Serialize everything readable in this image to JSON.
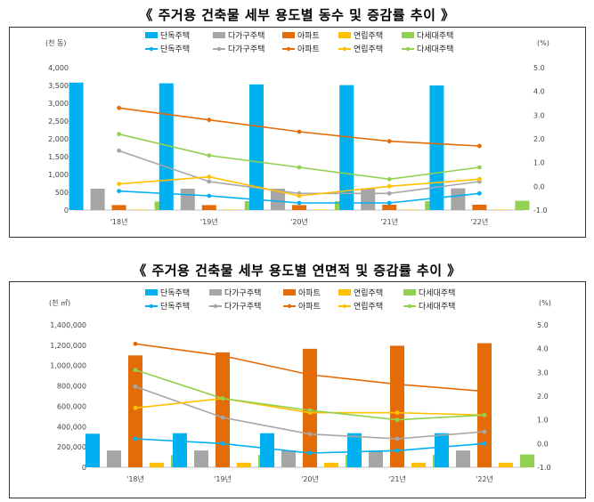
{
  "titles": [
    "《 주거용 건축물 세부 용도별 동수 및 증감률 추이 》",
    "《 주거용 건축물 세부 용도별 연면적 및 증감률 추이 》"
  ],
  "colors": {
    "단독주택": "#00b0f0",
    "다가구주택": "#a6a6a6",
    "아파트": "#e36c09",
    "연립주택": "#ffc000",
    "다세대주택": "#92d050"
  },
  "chart_data": [
    {
      "type": "bar",
      "categories": [
        "'18년",
        "'19년",
        "'20년",
        "'21년",
        "'22년"
      ],
      "y_unit": "(천 동)",
      "y2_unit": "(%)",
      "ylim": [
        0,
        4000
      ],
      "yticks": [
        "0",
        "500",
        "1,000",
        "1,500",
        "2,000",
        "2,500",
        "3,000",
        "3,500",
        "4,000"
      ],
      "y2lim": [
        -1.0,
        5.0
      ],
      "y2ticks": [
        "-1.0",
        "0.0",
        "1.0",
        "2.0",
        "3.0",
        "4.0",
        "5.0"
      ],
      "legend_bars": [
        "단독주택",
        "다가구주택",
        "아파트",
        "연립주택",
        "다세대주택"
      ],
      "legend_lines": [
        "단독주택",
        "다가구주택",
        "아파트",
        "연립주택",
        "다세대주택"
      ],
      "series": [
        {
          "name": "단독주택",
          "values": [
            3580,
            3560,
            3530,
            3510,
            3500
          ]
        },
        {
          "name": "다가구주택",
          "values": [
            600,
            600,
            600,
            610,
            610
          ]
        },
        {
          "name": "아파트",
          "values": [
            140,
            140,
            140,
            150,
            150
          ]
        },
        {
          "name": "연립주택",
          "values": [
            15,
            15,
            15,
            15,
            15
          ]
        },
        {
          "name": "다세대주택",
          "values": [
            240,
            250,
            250,
            250,
            260
          ]
        }
      ],
      "line_series": [
        {
          "name": "단독주택",
          "values": [
            -0.2,
            -0.4,
            -0.7,
            -0.7,
            -0.3
          ]
        },
        {
          "name": "다가구주택",
          "values": [
            1.5,
            0.2,
            -0.3,
            -0.3,
            0.2
          ]
        },
        {
          "name": "아파트",
          "values": [
            3.3,
            2.8,
            2.3,
            1.9,
            1.7
          ]
        },
        {
          "name": "연립주택",
          "values": [
            0.1,
            0.4,
            -0.4,
            0.0,
            0.3
          ]
        },
        {
          "name": "다세대주택",
          "values": [
            2.2,
            1.3,
            0.8,
            0.3,
            0.8
          ]
        }
      ]
    },
    {
      "type": "bar",
      "categories": [
        "'18년",
        "'19년",
        "'20년",
        "'21년",
        "'22년"
      ],
      "y_unit": "(천 ㎡)",
      "y2_unit": "(%)",
      "ylim": [
        0,
        1400000
      ],
      "yticks": [
        "0",
        "200,000",
        "400,000",
        "600,000",
        "800,000",
        "1,000,000",
        "1,200,000",
        "1,400,000"
      ],
      "y2lim": [
        -1.0,
        5.0
      ],
      "y2ticks": [
        "-1.0",
        "0.0",
        "1.0",
        "2.0",
        "3.0",
        "4.0",
        "5.0"
      ],
      "legend_bars": [
        "단독주택",
        "다가구주택",
        "아파트",
        "연립주택",
        "다세대주택"
      ],
      "legend_lines": [
        "단독주택",
        "다가구주택",
        "아파트",
        "연립주택",
        "다세대주택"
      ],
      "series": [
        {
          "name": "단독주택",
          "values": [
            330000,
            335000,
            335000,
            335000,
            335000
          ]
        },
        {
          "name": "다가구주택",
          "values": [
            165000,
            165000,
            165000,
            165000,
            165000
          ]
        },
        {
          "name": "아파트",
          "values": [
            1100000,
            1130000,
            1165000,
            1195000,
            1220000
          ]
        },
        {
          "name": "연립주택",
          "values": [
            45000,
            45000,
            45000,
            45000,
            45000
          ]
        },
        {
          "name": "다세대주택",
          "values": [
            120000,
            122000,
            122000,
            124000,
            126000
          ]
        }
      ],
      "line_series": [
        {
          "name": "단독주택",
          "values": [
            0.2,
            0.0,
            -0.4,
            -0.3,
            0.0
          ]
        },
        {
          "name": "다가구주택",
          "values": [
            2.4,
            1.1,
            0.4,
            0.2,
            0.5
          ]
        },
        {
          "name": "아파트",
          "values": [
            4.2,
            3.7,
            2.9,
            2.5,
            2.2
          ]
        },
        {
          "name": "연립주택",
          "values": [
            1.5,
            1.9,
            1.3,
            1.3,
            1.2
          ]
        },
        {
          "name": "다세대주택",
          "values": [
            3.1,
            1.9,
            1.4,
            1.0,
            1.2
          ]
        }
      ]
    }
  ]
}
